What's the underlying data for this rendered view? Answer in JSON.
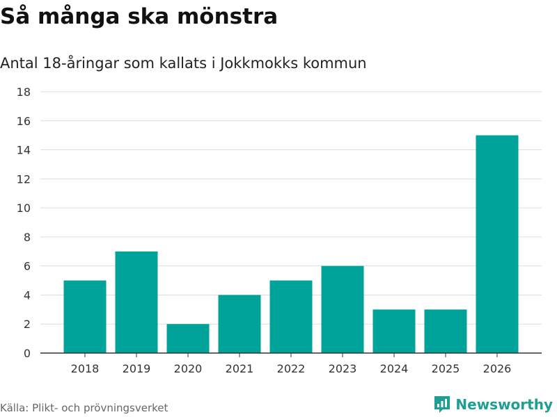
{
  "title": "Så många ska mönstra",
  "subtitle": "Antal 18-åringar som kallats i Jokkmokks kommun",
  "source": "Källa: Plikt- och prövningsverket",
  "brand": {
    "name": "Newsworthy",
    "icon": "bar-chart-logo-icon",
    "color": "#1e9f91"
  },
  "colors": {
    "bar": "#00a399",
    "grid": "#dddddd",
    "axis": "#333333"
  },
  "chart_data": {
    "type": "bar",
    "title": "Så många ska mönstra",
    "subtitle": "Antal 18-åringar som kallats i Jokkmokks kommun",
    "categories": [
      "2018",
      "2019",
      "2020",
      "2021",
      "2022",
      "2023",
      "2024",
      "2025",
      "2026"
    ],
    "values": [
      5,
      7,
      2,
      4,
      5,
      6,
      3,
      3,
      15
    ],
    "xlabel": "",
    "ylabel": "",
    "ylim": [
      0,
      18
    ],
    "yticks": [
      0,
      2,
      4,
      6,
      8,
      10,
      12,
      14,
      16,
      18
    ],
    "grid": true,
    "legend": "none"
  }
}
